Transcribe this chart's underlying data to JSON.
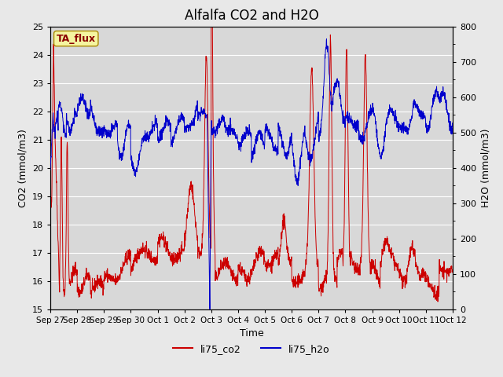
{
  "title": "Alfalfa CO2 and H2O",
  "xlabel": "Time",
  "ylabel_left": "CO2 (mmol/m3)",
  "ylabel_right": "H2O (mmol/m3)",
  "ylim_left": [
    15.0,
    25.0
  ],
  "ylim_right": [
    0,
    800
  ],
  "yticks_left": [
    15.0,
    16.0,
    17.0,
    18.0,
    19.0,
    20.0,
    21.0,
    22.0,
    23.0,
    24.0,
    25.0
  ],
  "yticks_right": [
    0,
    100,
    200,
    300,
    400,
    500,
    600,
    700,
    800
  ],
  "xtick_labels": [
    "Sep 27",
    "Sep 28",
    "Sep 29",
    "Sep 30",
    "Oct 1",
    "Oct 2",
    "Oct 3",
    "Oct 4",
    "Oct 5",
    "Oct 6",
    "Oct 7",
    "Oct 8",
    "Oct 9",
    "Oct 10",
    "Oct 11",
    "Oct 12"
  ],
  "watermark_text": "TA_flux",
  "legend_labels": [
    "li75_co2",
    "li75_h2o"
  ],
  "co2_color": "#cc0000",
  "h2o_color": "#0000cc",
  "fig_facecolor": "#e8e8e8",
  "plot_facecolor": "#d8d8d8",
  "title_fontsize": 12,
  "axis_label_fontsize": 9,
  "tick_fontsize": 8,
  "watermark_fontsize": 9,
  "legend_fontsize": 9
}
